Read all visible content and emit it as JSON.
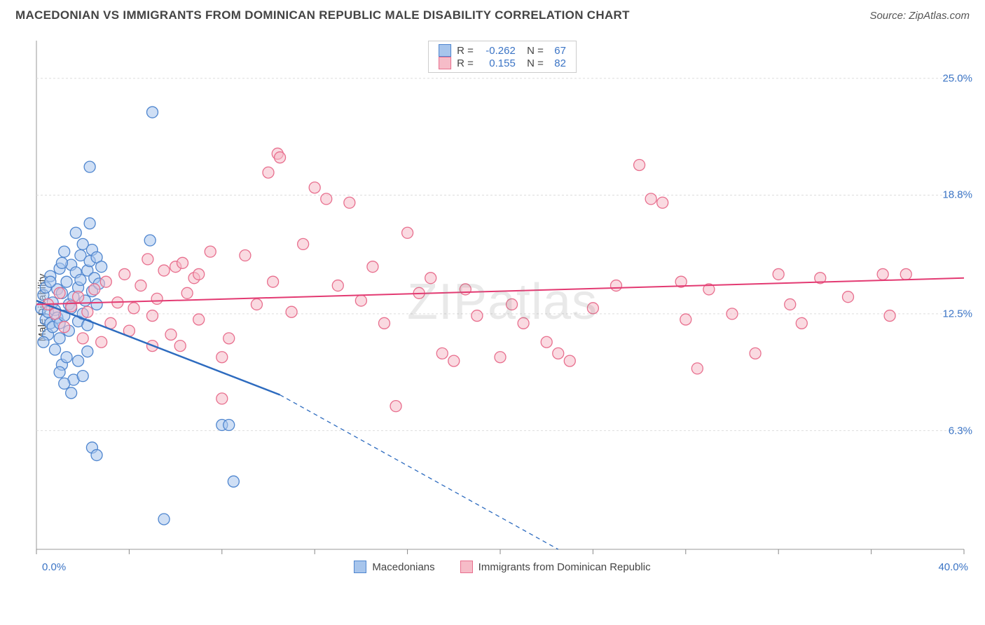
{
  "header": {
    "title": "MACEDONIAN VS IMMIGRANTS FROM DOMINICAN REPUBLIC MALE DISABILITY CORRELATION CHART",
    "source": "Source: ZipAtlas.com"
  },
  "chart": {
    "type": "scatter",
    "ylabel": "Male Disability",
    "watermark": "ZIPatlas",
    "background_color": "#ffffff",
    "grid_color": "#dddddd",
    "axis_color": "#999999",
    "tick_color": "#888888",
    "tick_label_color": "#3b74c5",
    "xlim": [
      0,
      40
    ],
    "ylim": [
      0,
      27
    ],
    "x_start_label": "0.0%",
    "x_end_label": "40.0%",
    "x_ticks": [
      0,
      4,
      8,
      12,
      16,
      20,
      24,
      28,
      32,
      36,
      40
    ],
    "y_gridlines": [
      {
        "v": 6.3,
        "label": "6.3%"
      },
      {
        "v": 12.5,
        "label": "12.5%"
      },
      {
        "v": 18.8,
        "label": "18.8%"
      },
      {
        "v": 25.0,
        "label": "25.0%"
      }
    ],
    "series": [
      {
        "name": "Macedonians",
        "fill": "#a7c5ec",
        "fill_opacity": 0.55,
        "stroke": "#4f86cf",
        "marker_r": 8,
        "line_color": "#2d6bbf",
        "line_width": 2.5,
        "R": "-0.262",
        "N": "67",
        "trend": {
          "x1": 0,
          "y1": 13.2,
          "x2_solid": 10.5,
          "y2_solid": 8.2,
          "x2": 22.5,
          "y2": 0.0
        },
        "points": [
          [
            0.2,
            12.8
          ],
          [
            0.3,
            13.5
          ],
          [
            0.4,
            12.2
          ],
          [
            0.4,
            13.9
          ],
          [
            0.5,
            12.6
          ],
          [
            0.5,
            11.4
          ],
          [
            0.6,
            12.0
          ],
          [
            0.6,
            14.5
          ],
          [
            0.7,
            13.1
          ],
          [
            0.7,
            11.8
          ],
          [
            0.8,
            12.7
          ],
          [
            0.8,
            10.6
          ],
          [
            0.9,
            13.8
          ],
          [
            0.9,
            12.3
          ],
          [
            1.0,
            11.2
          ],
          [
            1.0,
            14.9
          ],
          [
            1.0,
            12.0
          ],
          [
            1.1,
            9.8
          ],
          [
            1.1,
            13.6
          ],
          [
            1.2,
            12.4
          ],
          [
            1.2,
            15.8
          ],
          [
            1.3,
            14.2
          ],
          [
            1.3,
            10.2
          ],
          [
            1.4,
            13.0
          ],
          [
            1.4,
            11.6
          ],
          [
            1.5,
            12.8
          ],
          [
            1.5,
            15.1
          ],
          [
            1.6,
            9.0
          ],
          [
            1.6,
            13.4
          ],
          [
            1.7,
            14.7
          ],
          [
            1.8,
            12.1
          ],
          [
            1.8,
            13.9
          ],
          [
            1.9,
            15.6
          ],
          [
            1.9,
            14.3
          ],
          [
            2.0,
            12.5
          ],
          [
            2.0,
            16.2
          ],
          [
            2.1,
            13.2
          ],
          [
            2.2,
            14.8
          ],
          [
            2.2,
            11.9
          ],
          [
            2.3,
            15.3
          ],
          [
            2.4,
            13.7
          ],
          [
            2.4,
            15.9
          ],
          [
            2.5,
            14.4
          ],
          [
            2.6,
            13.0
          ],
          [
            2.6,
            15.5
          ],
          [
            2.7,
            14.1
          ],
          [
            2.8,
            15.0
          ],
          [
            2.3,
            20.3
          ],
          [
            2.3,
            17.3
          ],
          [
            1.0,
            9.4
          ],
          [
            1.2,
            8.8
          ],
          [
            1.5,
            8.3
          ],
          [
            1.8,
            10.0
          ],
          [
            2.0,
            9.2
          ],
          [
            2.2,
            10.5
          ],
          [
            2.4,
            5.4
          ],
          [
            2.6,
            5.0
          ],
          [
            5.0,
            23.2
          ],
          [
            4.9,
            16.4
          ],
          [
            8.0,
            6.6
          ],
          [
            8.3,
            6.6
          ],
          [
            8.5,
            3.6
          ],
          [
            5.5,
            1.6
          ],
          [
            1.1,
            15.2
          ],
          [
            1.7,
            16.8
          ],
          [
            0.6,
            14.2
          ],
          [
            0.3,
            11.0
          ]
        ]
      },
      {
        "name": "Immigrants from Dominican Republic",
        "fill": "#f6bcc8",
        "fill_opacity": 0.55,
        "stroke": "#e86f8e",
        "marker_r": 8,
        "line_color": "#e33a72",
        "line_width": 2,
        "R": "0.155",
        "N": "82",
        "trend": {
          "x1": 0,
          "y1": 13.0,
          "x2_solid": 40,
          "y2_solid": 14.4,
          "x2": 40,
          "y2": 14.4
        },
        "points": [
          [
            0.5,
            13.0
          ],
          [
            0.8,
            12.5
          ],
          [
            1.0,
            13.6
          ],
          [
            1.2,
            11.8
          ],
          [
            1.5,
            12.9
          ],
          [
            1.8,
            13.4
          ],
          [
            2.0,
            11.2
          ],
          [
            2.2,
            12.6
          ],
          [
            2.5,
            13.8
          ],
          [
            2.8,
            11.0
          ],
          [
            3.0,
            14.2
          ],
          [
            3.2,
            12.0
          ],
          [
            3.5,
            13.1
          ],
          [
            3.8,
            14.6
          ],
          [
            4.0,
            11.6
          ],
          [
            4.2,
            12.8
          ],
          [
            4.5,
            14.0
          ],
          [
            4.8,
            15.4
          ],
          [
            5.0,
            12.4
          ],
          [
            5.2,
            13.3
          ],
          [
            5.5,
            14.8
          ],
          [
            5.8,
            11.4
          ],
          [
            6.0,
            15.0
          ],
          [
            6.2,
            10.8
          ],
          [
            6.5,
            13.6
          ],
          [
            6.8,
            14.4
          ],
          [
            7.0,
            12.2
          ],
          [
            7.0,
            14.6
          ],
          [
            7.5,
            15.8
          ],
          [
            8.0,
            10.2
          ],
          [
            8.0,
            8.0
          ],
          [
            8.3,
            11.2
          ],
          [
            9.0,
            15.6
          ],
          [
            9.5,
            13.0
          ],
          [
            10.0,
            20.0
          ],
          [
            10.2,
            14.2
          ],
          [
            10.4,
            21.0
          ],
          [
            10.5,
            20.8
          ],
          [
            11.0,
            12.6
          ],
          [
            11.5,
            16.2
          ],
          [
            12.0,
            19.2
          ],
          [
            12.5,
            18.6
          ],
          [
            13.0,
            14.0
          ],
          [
            13.5,
            18.4
          ],
          [
            14.0,
            13.2
          ],
          [
            14.5,
            15.0
          ],
          [
            15.0,
            12.0
          ],
          [
            15.5,
            7.6
          ],
          [
            16.0,
            16.8
          ],
          [
            16.5,
            13.6
          ],
          [
            17.0,
            14.4
          ],
          [
            17.5,
            10.4
          ],
          [
            18.0,
            10.0
          ],
          [
            18.5,
            13.8
          ],
          [
            19.0,
            12.4
          ],
          [
            20.0,
            10.2
          ],
          [
            20.5,
            13.0
          ],
          [
            21.0,
            12.0
          ],
          [
            22.0,
            11.0
          ],
          [
            22.5,
            10.4
          ],
          [
            23.0,
            10.0
          ],
          [
            24.0,
            12.8
          ],
          [
            25.0,
            14.0
          ],
          [
            26.0,
            20.4
          ],
          [
            26.5,
            18.6
          ],
          [
            27.0,
            18.4
          ],
          [
            27.8,
            14.2
          ],
          [
            28.0,
            12.2
          ],
          [
            28.5,
            9.6
          ],
          [
            29.0,
            13.8
          ],
          [
            30.0,
            12.5
          ],
          [
            31.0,
            10.4
          ],
          [
            32.0,
            14.6
          ],
          [
            32.5,
            13.0
          ],
          [
            33.0,
            12.0
          ],
          [
            33.8,
            14.4
          ],
          [
            35.0,
            13.4
          ],
          [
            36.5,
            14.6
          ],
          [
            36.8,
            12.4
          ],
          [
            37.5,
            14.6
          ],
          [
            5.0,
            10.8
          ],
          [
            6.3,
            15.2
          ]
        ]
      }
    ]
  }
}
